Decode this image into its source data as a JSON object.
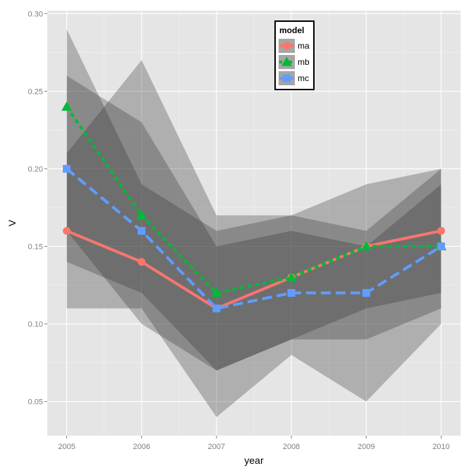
{
  "chart_data": {
    "type": "line",
    "title": "",
    "xlabel": "year",
    "ylabel": "V",
    "x": [
      2005,
      2006,
      2007,
      2008,
      2009,
      2010
    ],
    "x_tick_labels": [
      "2005",
      "2006",
      "2007",
      "2008",
      "2009",
      "2010"
    ],
    "xlim": [
      2004.74,
      2010.26
    ],
    "ylim": [
      0.028,
      0.302
    ],
    "y_ticks": [
      0.05,
      0.1,
      0.15,
      0.2,
      0.25,
      0.3
    ],
    "y_tick_labels": [
      "0.05",
      "0.10",
      "0.15",
      "0.20",
      "0.25",
      "0.30"
    ],
    "grid": true,
    "legend": {
      "title": "model",
      "position": "top-center"
    },
    "series": [
      {
        "name": "ma",
        "color": "#F8766D",
        "line_style": "solid",
        "marker": "circle",
        "values": [
          0.16,
          0.14,
          0.11,
          0.13,
          0.15,
          0.16
        ],
        "ribbon_lower": [
          0.14,
          0.12,
          0.07,
          0.09,
          0.11,
          0.12
        ],
        "ribbon_upper": [
          0.26,
          0.23,
          0.15,
          0.16,
          0.15,
          0.19
        ]
      },
      {
        "name": "mb",
        "color": "#00BA38",
        "line_style": "dotted",
        "marker": "triangle",
        "values": [
          0.24,
          0.17,
          0.12,
          0.13,
          0.15,
          0.15
        ],
        "ribbon_lower": [
          0.11,
          0.11,
          0.04,
          0.08,
          0.05,
          0.1
        ],
        "ribbon_upper": [
          0.29,
          0.19,
          0.16,
          0.17,
          0.19,
          0.2
        ]
      },
      {
        "name": "mc",
        "color": "#619CFF",
        "line_style": "dashed",
        "marker": "square",
        "values": [
          0.2,
          0.16,
          0.11,
          0.12,
          0.12,
          0.15
        ],
        "ribbon_lower": [
          0.16,
          0.1,
          0.07,
          0.09,
          0.09,
          0.11
        ],
        "ribbon_upper": [
          0.21,
          0.27,
          0.17,
          0.17,
          0.16,
          0.2
        ]
      }
    ]
  }
}
